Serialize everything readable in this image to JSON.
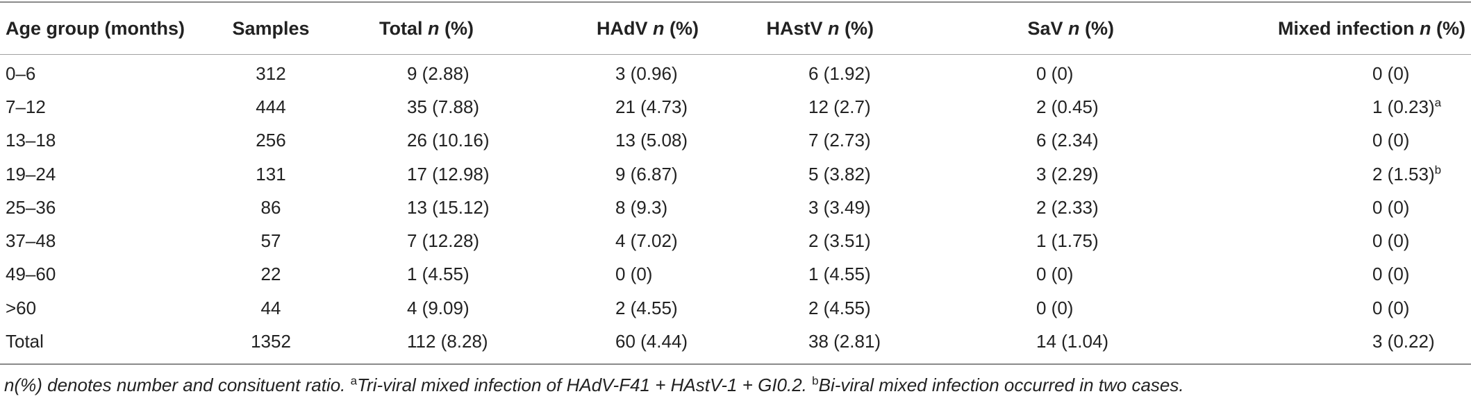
{
  "table": {
    "headers": [
      {
        "main": "Age group (months)",
        "italic": "",
        "suffix": ""
      },
      {
        "main": "Samples",
        "italic": "",
        "suffix": ""
      },
      {
        "main": "Total ",
        "italic": "n",
        "suffix": " (%)"
      },
      {
        "main": "HAdV ",
        "italic": "n",
        "suffix": " (%)"
      },
      {
        "main": "HAstV ",
        "italic": "n",
        "suffix": " (%)"
      },
      {
        "main": "SaV ",
        "italic": "n",
        "suffix": " (%)"
      },
      {
        "main": "Mixed infection ",
        "italic": "n",
        "suffix": " (%)"
      }
    ],
    "rows": [
      {
        "age": "0–6",
        "samples": "312",
        "total": "9 (2.88)",
        "hadv": "3 (0.96)",
        "hastv": "6 (1.92)",
        "sav": "0 (0)",
        "mixed": "0 (0)",
        "mixed_sup": ""
      },
      {
        "age": "7–12",
        "samples": "444",
        "total": "35 (7.88)",
        "hadv": "21 (4.73)",
        "hastv": "12 (2.7)",
        "sav": "2 (0.45)",
        "mixed": "1 (0.23)",
        "mixed_sup": "a"
      },
      {
        "age": "13–18",
        "samples": "256",
        "total": "26 (10.16)",
        "hadv": "13 (5.08)",
        "hastv": "7 (2.73)",
        "sav": "6 (2.34)",
        "mixed": "0 (0)",
        "mixed_sup": ""
      },
      {
        "age": "19–24",
        "samples": "131",
        "total": "17 (12.98)",
        "hadv": "9 (6.87)",
        "hastv": "5 (3.82)",
        "sav": "3 (2.29)",
        "mixed": "2 (1.53)",
        "mixed_sup": "b"
      },
      {
        "age": "25–36",
        "samples": "86",
        "total": "13 (15.12)",
        "hadv": "8 (9.3)",
        "hastv": "3 (3.49)",
        "sav": "2 (2.33)",
        "mixed": "0 (0)",
        "mixed_sup": ""
      },
      {
        "age": "37–48",
        "samples": "57",
        "total": "7 (12.28)",
        "hadv": "4 (7.02)",
        "hastv": "2 (3.51)",
        "sav": "1 (1.75)",
        "mixed": "0 (0)",
        "mixed_sup": ""
      },
      {
        "age": "49–60",
        "samples": "22",
        "total": "1 (4.55)",
        "hadv": "0 (0)",
        "hastv": "1 (4.55)",
        "sav": "0 (0)",
        "mixed": "0 (0)",
        "mixed_sup": ""
      },
      {
        "age": ">60",
        "samples": "44",
        "total": "4 (9.09)",
        "hadv": "2 (4.55)",
        "hastv": "2 (4.55)",
        "sav": "0 (0)",
        "mixed": "0 (0)",
        "mixed_sup": ""
      },
      {
        "age": "Total",
        "samples": "1352",
        "total": "112 (8.28)",
        "hadv": "60 (4.44)",
        "hastv": "38 (2.81)",
        "sav": "14 (1.04)",
        "mixed": "3 (0.22)",
        "mixed_sup": ""
      }
    ]
  },
  "footnote": {
    "part1": "n(%) denotes number and consituent ratio. ",
    "sup_a": "a",
    "part2": "Tri-viral mixed infection of HAdV-F41 + HAstV-1 + GI0.2. ",
    "sup_b": "b",
    "part3": "Bi-viral mixed infection occurred in two cases."
  }
}
